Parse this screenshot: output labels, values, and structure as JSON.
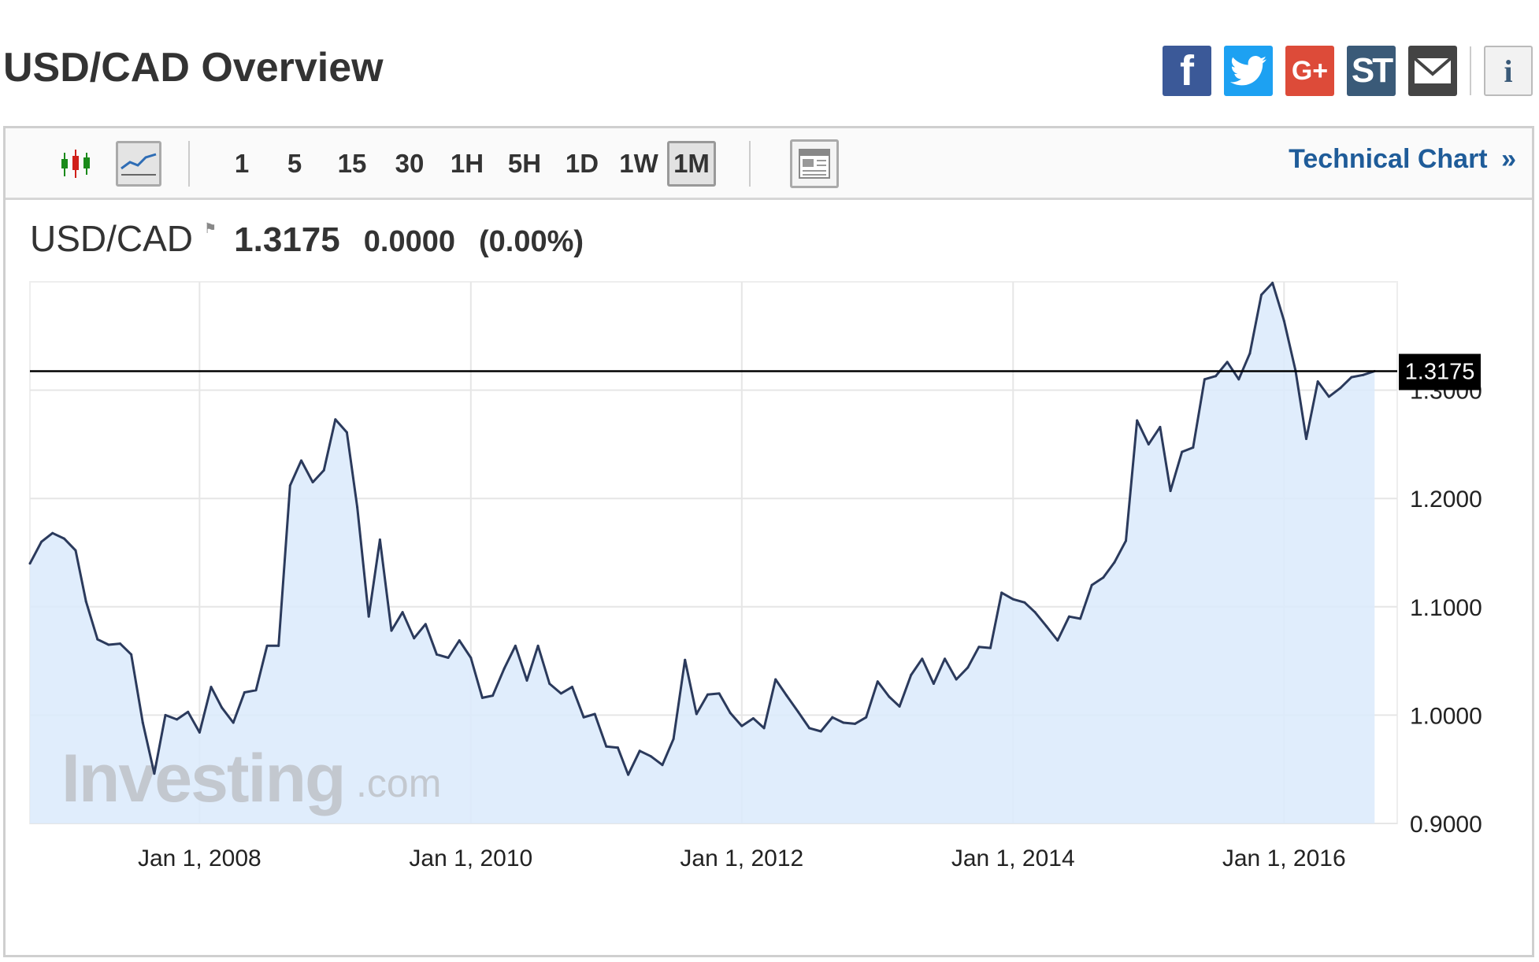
{
  "header": {
    "title": "USD/CAD Overview",
    "share_buttons": [
      "facebook-icon",
      "twitter-icon",
      "google-plus-icon",
      "stocktwits-icon",
      "email-icon",
      "info-icon"
    ],
    "share_labels": {
      "facebook": "f",
      "google_plus": "G+",
      "stocktwits": "ST",
      "info": "i"
    }
  },
  "toolbar": {
    "chart_type_icons": [
      "candlestick-icon",
      "line-chart-icon"
    ],
    "active_chart_type": "line-chart-icon",
    "intervals": [
      "1",
      "5",
      "15",
      "30",
      "1H",
      "5H",
      "1D",
      "1W",
      "1M"
    ],
    "active_interval": "1M",
    "layout_icon": "layout-icon",
    "technical_chart_label": "Technical Chart",
    "technical_chart_arrow": "»"
  },
  "quote": {
    "symbol": "USD/CAD",
    "price": "1.3175",
    "change": "0.0000",
    "change_pct": "(0.00%)"
  },
  "watermark": {
    "brand": "Investing",
    "suffix": ".com"
  },
  "colors": {
    "line": "#2b3a5c",
    "fill": "#dbeafb",
    "grid": "#e6e6e6",
    "link": "#1f5c99"
  },
  "chart_data": {
    "type": "area",
    "title": "",
    "xlabel": "",
    "ylabel": "",
    "x_ticks": [
      "Jan 1, 2008",
      "Jan 1, 2010",
      "Jan 1, 2012",
      "Jan 1, 2014",
      "Jan 1, 2016"
    ],
    "y_ticks": [
      "0.9000",
      "1.0000",
      "1.1000",
      "1.2000",
      "1.3000"
    ],
    "ylim": [
      0.9,
      1.4
    ],
    "xlim": [
      "2006-10-01",
      "2016-11-01"
    ],
    "grid": true,
    "current_value": 1.3175,
    "current_label": "1.3175",
    "series": [
      {
        "frequency": "monthly",
        "start": "2006-10",
        "values": [
          1.14,
          1.16,
          1.168,
          1.163,
          1.152,
          1.105,
          1.07,
          1.065,
          1.066,
          1.056,
          0.993,
          0.946,
          1.0,
          0.996,
          1.003,
          0.984,
          1.026,
          1.007,
          0.993,
          1.021,
          1.023,
          1.064,
          1.064,
          1.212,
          1.235,
          1.215,
          1.226,
          1.273,
          1.261,
          1.192,
          1.091,
          1.162,
          1.078,
          1.095,
          1.071,
          1.084,
          1.056,
          1.053,
          1.069,
          1.053,
          1.016,
          1.018,
          1.043,
          1.064,
          1.032,
          1.064,
          1.029,
          1.02,
          1.026,
          0.998,
          1.001,
          0.971,
          0.97,
          0.945,
          0.967,
          0.962,
          0.954,
          0.978,
          1.051,
          1.001,
          1.019,
          1.02,
          1.002,
          0.99,
          0.997,
          0.988,
          1.033,
          1.018,
          1.003,
          0.988,
          0.985,
          0.998,
          0.993,
          0.992,
          0.998,
          1.031,
          1.017,
          1.008,
          1.037,
          1.052,
          1.029,
          1.052,
          1.033,
          1.044,
          1.063,
          1.062,
          1.113,
          1.107,
          1.104,
          1.095,
          1.082,
          1.069,
          1.091,
          1.089,
          1.12,
          1.127,
          1.141,
          1.161,
          1.272,
          1.25,
          1.266,
          1.207,
          1.243,
          1.247,
          1.31,
          1.313,
          1.326,
          1.31,
          1.334,
          1.388,
          1.399,
          1.364,
          1.318,
          1.255,
          1.308,
          1.294,
          1.302,
          1.312,
          1.314,
          1.3175
        ]
      }
    ]
  }
}
